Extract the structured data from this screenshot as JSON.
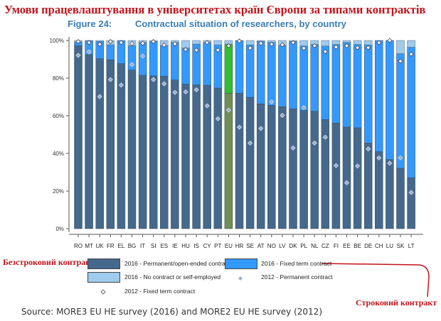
{
  "title": "Умови працевлаштування в університетах країн Європи за типами контрактів",
  "annotations": {
    "permanent": "Безстроковий контракт",
    "fixed": "Строковий контракт"
  },
  "source": "Source: MORE3 EU HE survey (2016) and MORE2 EU HE survey (2012)",
  "colors": {
    "permanent": "#44698c",
    "fixed": "#3399ff",
    "none": "#9ecbee",
    "eu_permanent": "#6f8f55",
    "eu_fixed": "#2fc033",
    "annotation": "#c0141c"
  },
  "chart_data": {
    "type": "bar",
    "stacked": true,
    "figure_label": "Figure 24:",
    "title": "Contractual situation of researchers, by country",
    "xlabel": "",
    "ylabel": "",
    "ylim": [
      0,
      100
    ],
    "yticks": [
      "0%",
      "20%",
      "40%",
      "60%",
      "80%",
      "100%"
    ],
    "categories": [
      "RO",
      "MT",
      "UK",
      "FR",
      "EL",
      "BG",
      "IT",
      "SI",
      "ES",
      "IE",
      "HU",
      "IS",
      "CY",
      "PT",
      "EU",
      "HR",
      "SE",
      "AT",
      "NO",
      "LV",
      "DK",
      "PL",
      "NL",
      "CZ",
      "FI",
      "EE",
      "BE",
      "DE",
      "CH",
      "LU",
      "SK",
      "LT"
    ],
    "highlight": "EU",
    "series": [
      {
        "name": "2016 - Permanent/open-ended contract",
        "type": "bar",
        "values": [
          97.2,
          92.5,
          90.3,
          89.7,
          87.7,
          84.3,
          81.5,
          81.2,
          81.0,
          79.0,
          76.8,
          76.4,
          76.2,
          74.7,
          72.0,
          72.0,
          69.8,
          66.3,
          65.5,
          64.8,
          63.7,
          62.8,
          62.4,
          58.0,
          56.1,
          54.0,
          53.6,
          45.5,
          40.9,
          36.7,
          32.1,
          27.1
        ]
      },
      {
        "name": "2016 - Fixed term contract",
        "type": "bar",
        "values": [
          2.0,
          7.5,
          9.2,
          8.0,
          12.3,
          12.9,
          17.5,
          18.3,
          16.2,
          20.0,
          19.2,
          21.7,
          22.7,
          23.0,
          26.1,
          28.0,
          27.9,
          33.2,
          33.5,
          32.6,
          35.8,
          34.3,
          35.5,
          39.1,
          41.8,
          45.0,
          44.3,
          52.2,
          59.1,
          63.3,
          60.9,
          69.3
        ]
      },
      {
        "name": "2016 - No contract or self-employed",
        "type": "bar",
        "values": [
          0.8,
          0.0,
          0.5,
          2.3,
          0.0,
          2.8,
          1.0,
          0.5,
          2.8,
          1.0,
          4.0,
          1.9,
          1.1,
          2.3,
          1.9,
          0.0,
          2.3,
          0.5,
          1.0,
          2.6,
          0.5,
          2.9,
          2.1,
          2.9,
          2.1,
          1.0,
          2.1,
          2.3,
          0.0,
          0.0,
          7.0,
          3.6
        ]
      },
      {
        "name": "2012 - Permanent contract",
        "type": "marker",
        "values": [
          92.1,
          94.0,
          70.2,
          79.2,
          76.3,
          87.2,
          91.7,
          79.2,
          77.0,
          72.4,
          72.7,
          73.8,
          65.3,
          58.4,
          63.0,
          53.9,
          45.5,
          53.3,
          67.4,
          60.2,
          42.9,
          64.3,
          45.5,
          48.6,
          33.5,
          24.4,
          33.3,
          42.4,
          37.6,
          34.8,
          37.6,
          19.2
        ]
      },
      {
        "name": "2012 - Fixed term contract",
        "type": "marker",
        "note": "plotted cumulatively above permanent",
        "values": [
          99.4,
          98.9,
          98.0,
          99.4,
          98.9,
          98.4,
          98.5,
          99.4,
          97.6,
          98.2,
          95.2,
          94.9,
          98.9,
          94.9,
          97.2,
          99.7,
          96.0,
          98.5,
          98.0,
          97.7,
          98.9,
          95.9,
          97.2,
          94.1,
          96.5,
          97.2,
          96.2,
          96.2,
          98.9,
          100.0,
          89.0,
          92.7
        ]
      }
    ],
    "legend": {
      "position": "bottom"
    }
  }
}
